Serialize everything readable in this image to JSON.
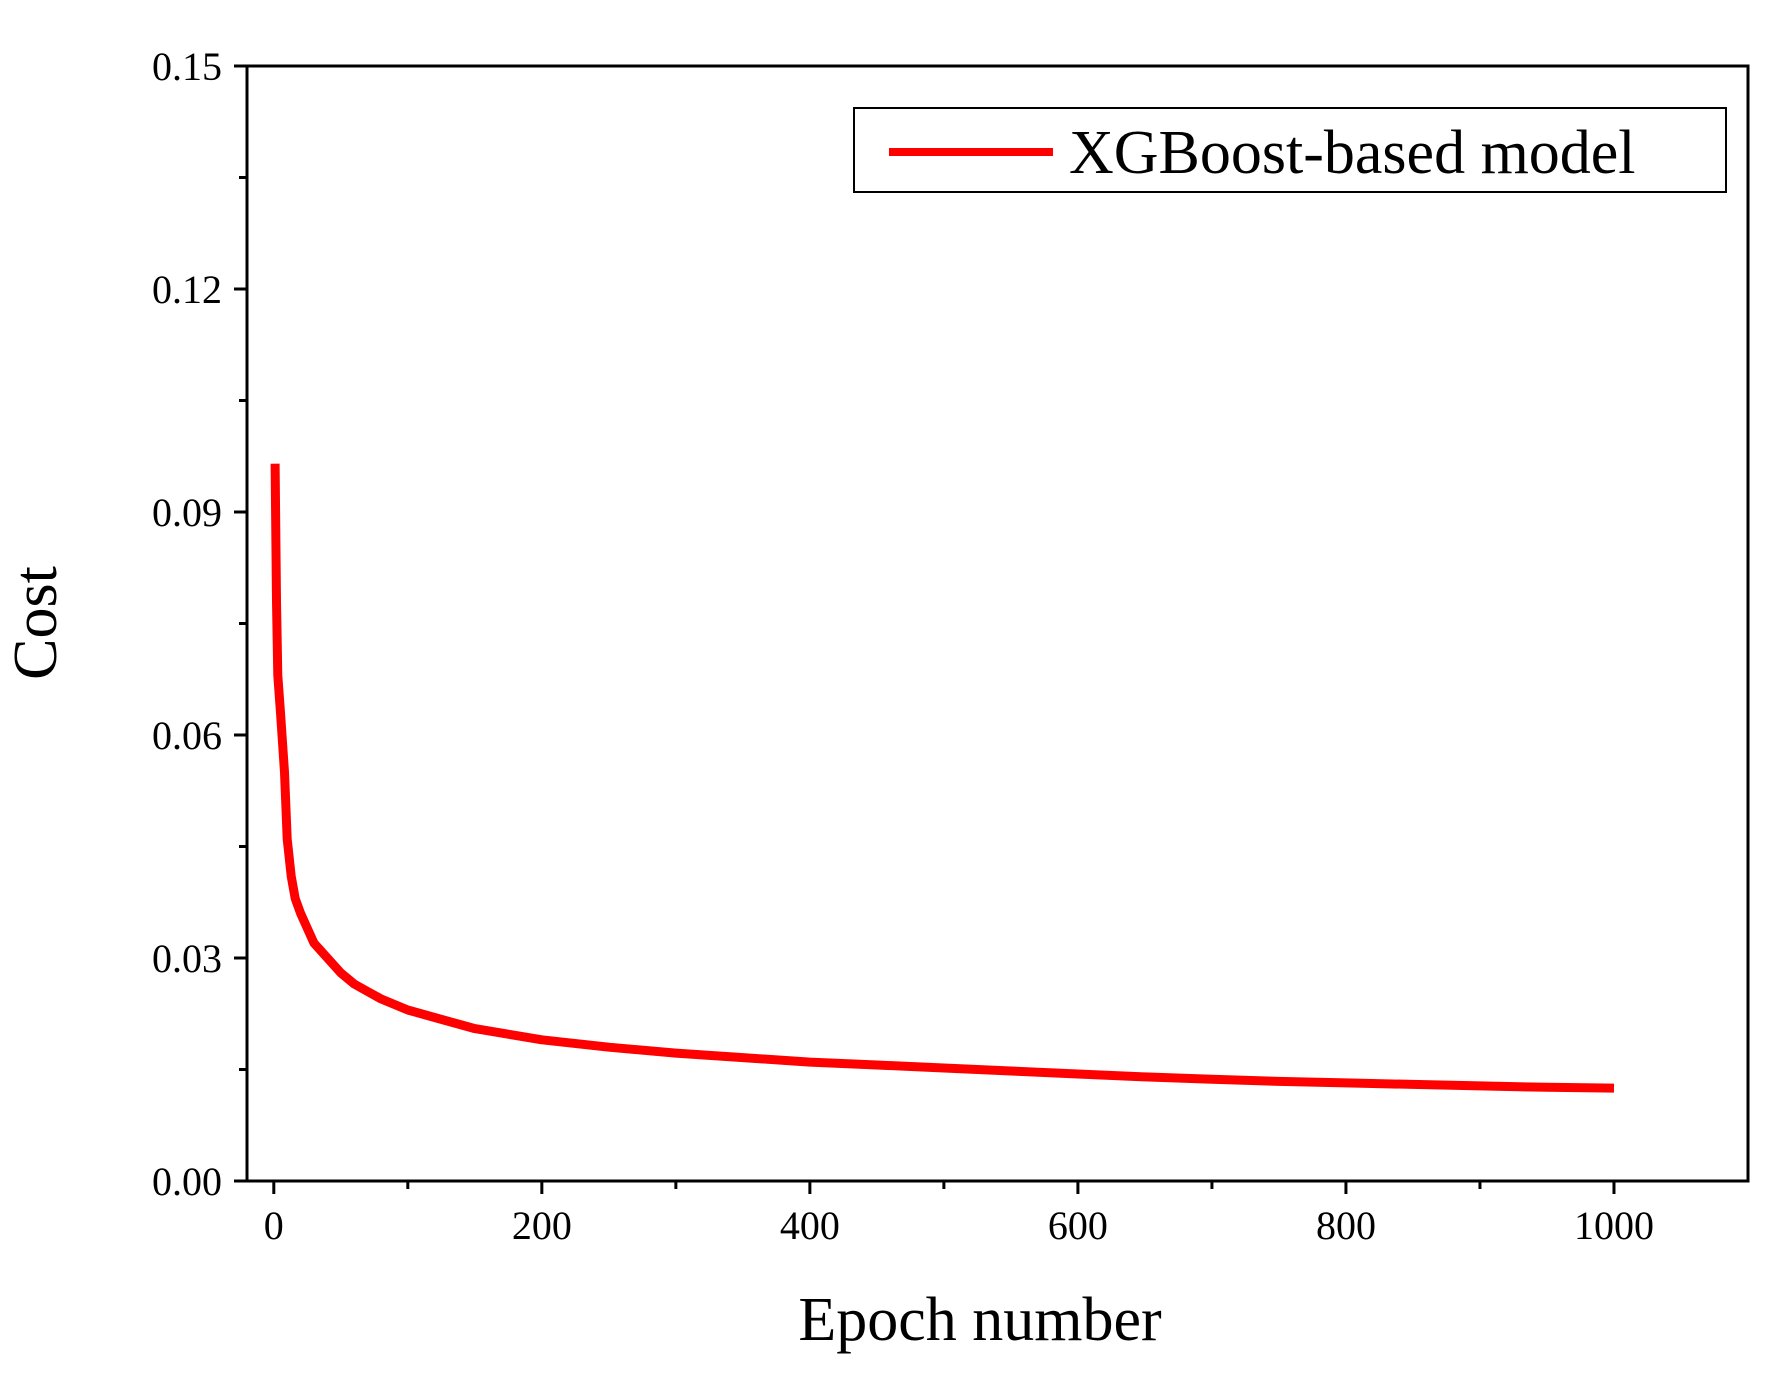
{
  "chart_data": {
    "type": "line",
    "title": "",
    "xlabel": "Epoch number",
    "ylabel": "Cost",
    "xlim": [
      -20,
      1100
    ],
    "ylim": [
      0,
      0.15
    ],
    "xticks": [
      0,
      200,
      400,
      600,
      800,
      1000
    ],
    "xtick_labels": [
      "0",
      "200",
      "400",
      "600",
      "800",
      "1000"
    ],
    "yticks": [
      0,
      0.03,
      0.06,
      0.09,
      0.12,
      0.15
    ],
    "ytick_labels": [
      "0.00",
      "0.03",
      "0.06",
      "0.09",
      "0.12",
      "0.15"
    ],
    "grid": false,
    "legend_position": "top-right",
    "series": [
      {
        "name": "XGBoost-based model",
        "color": "#ff0000",
        "x": [
          1,
          2,
          3,
          5,
          8,
          10,
          13,
          16,
          20,
          25,
          30,
          40,
          50,
          60,
          70,
          80,
          100,
          120,
          150,
          200,
          250,
          300,
          350,
          400,
          450,
          500,
          550,
          600,
          650,
          700,
          750,
          800,
          850,
          900,
          950,
          1000
        ],
        "y": [
          0.0965,
          0.078,
          0.068,
          0.063,
          0.055,
          0.046,
          0.041,
          0.038,
          0.036,
          0.034,
          0.032,
          0.03,
          0.028,
          0.0265,
          0.0255,
          0.0245,
          0.023,
          0.022,
          0.0205,
          0.019,
          0.018,
          0.0172,
          0.0166,
          0.016,
          0.0156,
          0.0152,
          0.0148,
          0.0144,
          0.014,
          0.0137,
          0.0134,
          0.0132,
          0.013,
          0.0128,
          0.0126,
          0.0125
        ]
      }
    ]
  }
}
